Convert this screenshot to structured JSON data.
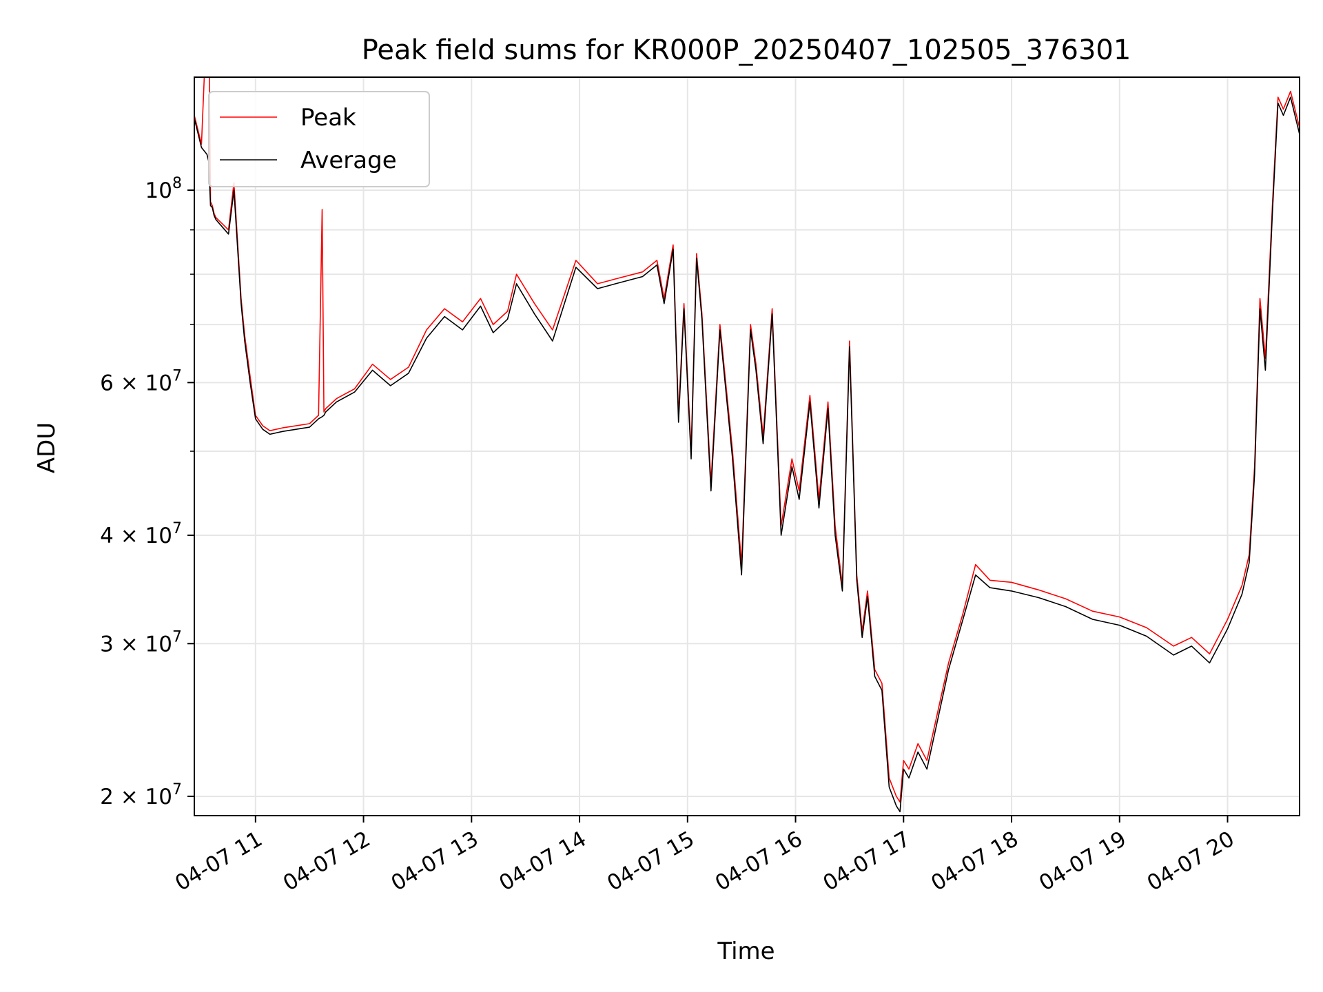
{
  "chart_data": {
    "type": "line",
    "title": "Peak field sums for KR000P_20250407_102505_376301",
    "xlabel": "Time",
    "ylabel": "ADU",
    "yscale": "log",
    "xlim": [
      "04-07 10:26",
      "04-07 20:40"
    ],
    "ylim": [
      19000000,
      135000000
    ],
    "grid": true,
    "legend_position": "top-left",
    "x_ticks": [
      {
        "time": "04-07 11:00",
        "label": "04-07 11"
      },
      {
        "time": "04-07 12:00",
        "label": "04-07 12"
      },
      {
        "time": "04-07 13:00",
        "label": "04-07 13"
      },
      {
        "time": "04-07 14:00",
        "label": "04-07 14"
      },
      {
        "time": "04-07 15:00",
        "label": "04-07 15"
      },
      {
        "time": "04-07 16:00",
        "label": "04-07 16"
      },
      {
        "time": "04-07 17:00",
        "label": "04-07 17"
      },
      {
        "time": "04-07 18:00",
        "label": "04-07 18"
      },
      {
        "time": "04-07 19:00",
        "label": "04-07 19"
      },
      {
        "time": "04-07 20:00",
        "label": "04-07 20"
      }
    ],
    "y_ticks": [
      {
        "value": 20000000,
        "mantissa": "2",
        "exponent": "7"
      },
      {
        "value": 30000000,
        "mantissa": "3",
        "exponent": "7"
      },
      {
        "value": 40000000,
        "mantissa": "4",
        "exponent": "7"
      },
      {
        "value": 60000000,
        "mantissa": "6",
        "exponent": "7"
      },
      {
        "value": 100000000,
        "mantissa": "",
        "exponent": "8"
      }
    ],
    "y_minor_ticks": [
      50000000,
      70000000,
      80000000,
      90000000
    ],
    "series": [
      {
        "name": "Peak",
        "color": "#ff0000",
        "x": [
          "04-07 10:26",
          "04-07 10:30",
          "04-07 10:33",
          "04-07 10:34",
          "04-07 10:35",
          "04-07 10:36",
          "04-07 10:37",
          "04-07 10:38",
          "04-07 10:45",
          "04-07 10:48",
          "04-07 10:52",
          "04-07 10:54",
          "04-07 10:57",
          "04-07 11:00",
          "04-07 11:04",
          "04-07 11:08",
          "04-07 11:15",
          "04-07 11:30",
          "04-07 11:35",
          "04-07 11:37",
          "04-07 11:38",
          "04-07 11:39",
          "04-07 11:45",
          "04-07 11:55",
          "04-07 12:05",
          "04-07 12:15",
          "04-07 12:25",
          "04-07 12:35",
          "04-07 12:45",
          "04-07 12:55",
          "04-07 13:05",
          "04-07 13:12",
          "04-07 13:20",
          "04-07 13:25",
          "04-07 13:35",
          "04-07 13:45",
          "04-07 13:58",
          "04-07 14:10",
          "04-07 14:20",
          "04-07 14:35",
          "04-07 14:43",
          "04-07 14:47",
          "04-07 14:52",
          "04-07 14:55",
          "04-07 14:58",
          "04-07 15:02",
          "04-07 15:05",
          "04-07 15:08",
          "04-07 15:13",
          "04-07 15:18",
          "04-07 15:25",
          "04-07 15:30",
          "04-07 15:35",
          "04-07 15:38",
          "04-07 15:42",
          "04-07 15:47",
          "04-07 15:52",
          "04-07 15:58",
          "04-07 16:02",
          "04-07 16:08",
          "04-07 16:13",
          "04-07 16:18",
          "04-07 16:22",
          "04-07 16:26",
          "04-07 16:30",
          "04-07 16:34",
          "04-07 16:37",
          "04-07 16:40",
          "04-07 16:44",
          "04-07 16:48",
          "04-07 16:52",
          "04-07 16:56",
          "04-07 16:58",
          "04-07 17:00",
          "04-07 17:03",
          "04-07 17:08",
          "04-07 17:13",
          "04-07 17:18",
          "04-07 17:25",
          "04-07 17:33",
          "04-07 17:40",
          "04-07 17:48",
          "04-07 18:00",
          "04-07 18:15",
          "04-07 18:30",
          "04-07 18:45",
          "04-07 19:00",
          "04-07 19:15",
          "04-07 19:30",
          "04-07 19:40",
          "04-07 19:50",
          "04-07 20:00",
          "04-07 20:08",
          "04-07 20:12",
          "04-07 20:15",
          "04-07 20:18",
          "04-07 20:21",
          "04-07 20:25",
          "04-07 20:28",
          "04-07 20:31",
          "04-07 20:35",
          "04-07 20:40"
        ],
        "y": [
          122000000,
          113000000,
          160000000,
          165000000,
          97000000,
          96000000,
          94000000,
          93000000,
          90000000,
          102000000,
          75000000,
          68000000,
          61000000,
          55000000,
          53500000,
          52800000,
          53200000,
          53800000,
          55000000,
          95000000,
          55500000,
          56000000,
          57500000,
          59000000,
          63000000,
          60500000,
          62500000,
          69000000,
          73000000,
          70500000,
          75000000,
          70000000,
          72500000,
          80000000,
          74000000,
          69000000,
          83000000,
          78000000,
          79000000,
          80500000,
          83000000,
          75000000,
          86500000,
          55000000,
          74000000,
          50000000,
          84500000,
          72000000,
          46000000,
          70000000,
          50000000,
          37000000,
          70000000,
          63000000,
          52000000,
          73000000,
          41000000,
          49000000,
          45000000,
          58000000,
          44000000,
          57000000,
          41000000,
          35000000,
          67000000,
          36000000,
          31000000,
          34500000,
          28000000,
          27000000,
          21000000,
          20000000,
          19700000,
          22000000,
          21500000,
          23000000,
          22000000,
          24500000,
          28500000,
          32500000,
          37000000,
          35500000,
          35300000,
          34600000,
          33800000,
          32700000,
          32200000,
          31300000,
          29800000,
          30500000,
          29200000,
          32000000,
          35000000,
          38000000,
          48000000,
          75000000,
          64000000,
          97000000,
          128000000,
          124000000,
          130000000,
          118000000
        ]
      },
      {
        "name": "Average",
        "color": "#000000",
        "x": [
          "04-07 10:26",
          "04-07 10:30",
          "04-07 10:33",
          "04-07 10:34",
          "04-07 10:35",
          "04-07 10:36",
          "04-07 10:37",
          "04-07 10:38",
          "04-07 10:45",
          "04-07 10:48",
          "04-07 10:52",
          "04-07 10:54",
          "04-07 10:57",
          "04-07 11:00",
          "04-07 11:04",
          "04-07 11:08",
          "04-07 11:15",
          "04-07 11:30",
          "04-07 11:35",
          "04-07 11:37",
          "04-07 11:38",
          "04-07 11:39",
          "04-07 11:45",
          "04-07 11:55",
          "04-07 12:05",
          "04-07 12:15",
          "04-07 12:25",
          "04-07 12:35",
          "04-07 12:45",
          "04-07 12:55",
          "04-07 13:05",
          "04-07 13:12",
          "04-07 13:20",
          "04-07 13:25",
          "04-07 13:35",
          "04-07 13:45",
          "04-07 13:58",
          "04-07 14:10",
          "04-07 14:20",
          "04-07 14:35",
          "04-07 14:43",
          "04-07 14:47",
          "04-07 14:52",
          "04-07 14:55",
          "04-07 14:58",
          "04-07 15:02",
          "04-07 15:05",
          "04-07 15:08",
          "04-07 15:13",
          "04-07 15:18",
          "04-07 15:25",
          "04-07 15:30",
          "04-07 15:35",
          "04-07 15:38",
          "04-07 15:42",
          "04-07 15:47",
          "04-07 15:52",
          "04-07 15:58",
          "04-07 16:02",
          "04-07 16:08",
          "04-07 16:13",
          "04-07 16:18",
          "04-07 16:22",
          "04-07 16:26",
          "04-07 16:30",
          "04-07 16:34",
          "04-07 16:37",
          "04-07 16:40",
          "04-07 16:44",
          "04-07 16:48",
          "04-07 16:52",
          "04-07 16:56",
          "04-07 16:58",
          "04-07 17:00",
          "04-07 17:03",
          "04-07 17:08",
          "04-07 17:13",
          "04-07 17:18",
          "04-07 17:25",
          "04-07 17:33",
          "04-07 17:40",
          "04-07 17:48",
          "04-07 18:00",
          "04-07 18:15",
          "04-07 18:30",
          "04-07 18:45",
          "04-07 19:00",
          "04-07 19:15",
          "04-07 19:30",
          "04-07 19:40",
          "04-07 19:50",
          "04-07 20:00",
          "04-07 20:08",
          "04-07 20:12",
          "04-07 20:15",
          "04-07 20:18",
          "04-07 20:21",
          "04-07 20:25",
          "04-07 20:28",
          "04-07 20:31",
          "04-07 20:35",
          "04-07 20:40"
        ],
        "y": [
          121000000,
          112000000,
          110000000,
          108000000,
          96000000,
          95500000,
          93500000,
          92500000,
          89000000,
          100000000,
          74000000,
          67000000,
          60000000,
          54500000,
          53000000,
          52300000,
          52700000,
          53300000,
          54500000,
          54800000,
          55000000,
          55500000,
          57000000,
          58500000,
          62000000,
          59500000,
          61500000,
          67500000,
          71500000,
          69000000,
          73500000,
          68500000,
          71000000,
          78000000,
          72000000,
          67000000,
          81500000,
          77000000,
          78000000,
          79500000,
          82000000,
          74000000,
          85500000,
          54000000,
          73000000,
          49000000,
          83500000,
          71000000,
          45000000,
          69000000,
          49000000,
          36000000,
          69000000,
          62000000,
          51000000,
          72000000,
          40000000,
          48000000,
          44000000,
          57000000,
          43000000,
          56000000,
          40000000,
          34500000,
          66000000,
          35500000,
          30500000,
          34000000,
          27500000,
          26500000,
          20500000,
          19500000,
          19200000,
          21500000,
          21000000,
          22500000,
          21500000,
          24000000,
          28000000,
          32000000,
          36000000,
          34800000,
          34500000,
          33900000,
          33100000,
          32000000,
          31500000,
          30600000,
          29100000,
          29800000,
          28500000,
          31200000,
          34200000,
          37200000,
          47000000,
          73000000,
          62000000,
          95000000,
          126000000,
          122000000,
          128000000,
          116000000
        ]
      }
    ]
  }
}
